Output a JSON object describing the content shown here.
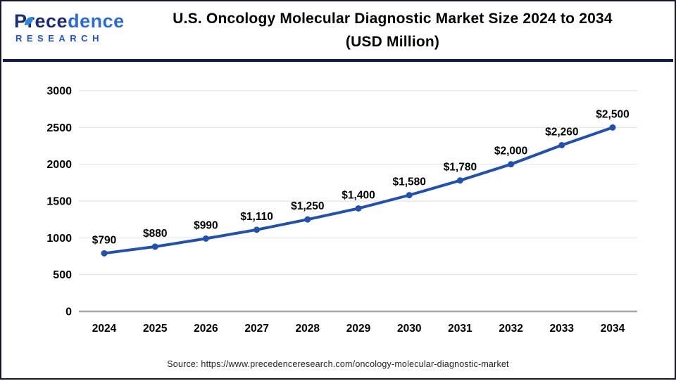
{
  "header": {
    "logo": {
      "text_part1": "Prece",
      "text_part2": "dence",
      "subtext": "RESEARCH",
      "color_dark": "#1c2d74",
      "color_light": "#2d6bd4",
      "leaf_color": "#2f86dd"
    },
    "title_line1": "U.S. Oncology Molecular Diagnostic Market Size 2024 to 2034",
    "title_line2": "(USD Million)"
  },
  "chart_data": {
    "type": "line",
    "title": "U.S. Oncology Molecular Diagnostic Market Size 2024 to 2034 (USD Million)",
    "categories": [
      "2024",
      "2025",
      "2026",
      "2027",
      "2028",
      "2029",
      "2030",
      "2031",
      "2032",
      "2033",
      "2034"
    ],
    "values": [
      790,
      880,
      990,
      1110,
      1250,
      1400,
      1580,
      1780,
      2000,
      2260,
      2500
    ],
    "data_labels": [
      "$790",
      "$880",
      "$990",
      "$1,110",
      "$1,250",
      "$1,400",
      "$1,580",
      "$1,780",
      "$2,000",
      "$2,260",
      "$2,500"
    ],
    "xlabel": "",
    "ylabel": "",
    "ylim": [
      0,
      3000
    ],
    "yticks": [
      0,
      500,
      1000,
      1500,
      2000,
      2500,
      3000
    ],
    "grid": true,
    "legend": "none",
    "line_color": "#2150ae",
    "marker": "circle",
    "grid_color": "#e3e3e3",
    "baseline_color": "#a6a6a6",
    "label_color": "#000000"
  },
  "footer": {
    "source_text": "Source: https://www.precedenceresearch.com/oncology-molecular-diagnostic-market"
  }
}
